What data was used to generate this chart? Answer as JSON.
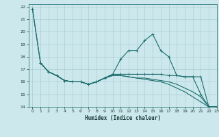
{
  "xlabel": "Humidex (Indice chaleur)",
  "bg_color": "#cce8ec",
  "line_color": "#1a6b6b",
  "grid_color": "#aacdd4",
  "xlim": [
    -0.5,
    23
  ],
  "ylim": [
    14,
    22.2
  ],
  "yticks": [
    14,
    15,
    16,
    17,
    18,
    19,
    20,
    21,
    22
  ],
  "xticks": [
    0,
    1,
    2,
    3,
    4,
    5,
    6,
    7,
    8,
    9,
    10,
    11,
    12,
    13,
    14,
    15,
    16,
    17,
    18,
    19,
    20,
    21,
    22,
    23
  ],
  "line1_x": [
    0,
    1,
    2,
    3,
    4,
    5,
    6,
    7,
    8,
    9,
    10,
    11,
    12,
    13,
    14,
    15,
    16,
    17,
    18,
    19,
    20,
    21,
    22,
    23
  ],
  "line1_y": [
    21.8,
    17.5,
    16.8,
    16.5,
    16.1,
    16.0,
    16.0,
    15.8,
    16.0,
    16.3,
    16.6,
    17.8,
    18.5,
    18.5,
    19.3,
    19.8,
    18.5,
    18.0,
    16.5,
    16.4,
    16.4,
    15.0,
    14.0,
    14.0
  ],
  "line2_x": [
    0,
    1,
    2,
    3,
    4,
    5,
    6,
    7,
    8,
    9,
    10,
    11,
    12,
    13,
    14,
    15,
    16,
    17,
    18,
    19,
    20,
    21,
    22,
    23
  ],
  "line2_y": [
    21.8,
    17.5,
    16.8,
    16.5,
    16.1,
    16.0,
    16.0,
    15.8,
    16.0,
    16.3,
    16.6,
    16.6,
    16.6,
    16.6,
    16.6,
    16.6,
    16.6,
    16.5,
    16.5,
    16.4,
    16.4,
    16.4,
    14.0,
    14.0
  ],
  "line3_x": [
    1,
    2,
    3,
    4,
    5,
    6,
    7,
    8,
    9,
    10,
    11,
    12,
    13,
    14,
    15,
    16,
    17,
    18,
    19,
    20,
    21,
    22,
    23
  ],
  "line3_y": [
    17.5,
    16.8,
    16.5,
    16.1,
    16.0,
    16.0,
    15.8,
    16.0,
    16.3,
    16.5,
    16.5,
    16.4,
    16.3,
    16.3,
    16.2,
    16.1,
    16.0,
    15.8,
    15.5,
    15.2,
    14.8,
    14.0,
    14.0
  ],
  "line4_x": [
    1,
    2,
    3,
    4,
    5,
    6,
    7,
    8,
    9,
    10,
    11,
    12,
    13,
    14,
    15,
    16,
    17,
    18,
    19,
    20,
    21,
    22,
    23
  ],
  "line4_y": [
    17.5,
    16.8,
    16.5,
    16.1,
    16.0,
    16.0,
    15.8,
    16.0,
    16.3,
    16.5,
    16.5,
    16.4,
    16.3,
    16.2,
    16.1,
    16.0,
    15.8,
    15.5,
    15.2,
    14.8,
    14.4,
    14.0,
    14.0
  ]
}
